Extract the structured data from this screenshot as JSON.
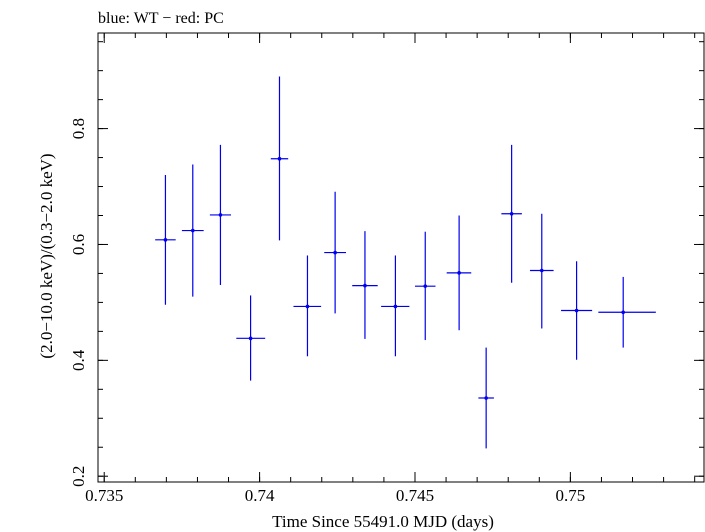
{
  "chart_data": {
    "type": "scatter",
    "title": "blue: WT − red: PC",
    "xlabel": "Time Since 55491.0 MJD (days)",
    "ylabel": "(2.0−10.0 keV)/(0.3−2.0 keV)",
    "xlim": [
      0.7348,
      0.7543
    ],
    "ylim": [
      0.19,
      0.965
    ],
    "x_ticks": [
      0.735,
      0.74,
      0.745,
      0.75
    ],
    "x_tick_labels": [
      "0.735",
      "0.74",
      "0.745",
      "0.75"
    ],
    "y_ticks": [
      0.2,
      0.4,
      0.6,
      0.8
    ],
    "y_tick_labels": [
      "0.2",
      "0.4",
      "0.6",
      "0.8"
    ],
    "x_minor_step": 0.001,
    "y_minor_step": 0.05,
    "grid": false,
    "legend": "none",
    "series": [
      {
        "color": "#0000ee",
        "points": [
          {
            "x": 0.73697,
            "xlo": 0.73664,
            "xhi": 0.7373,
            "y": 0.608,
            "ylo": 0.496,
            "yhi": 0.72
          },
          {
            "x": 0.73785,
            "xlo": 0.7375,
            "xhi": 0.7382,
            "y": 0.624,
            "ylo": 0.51,
            "yhi": 0.738
          },
          {
            "x": 0.73874,
            "xlo": 0.7384,
            "xhi": 0.73908,
            "y": 0.651,
            "ylo": 0.53,
            "yhi": 0.772
          },
          {
            "x": 0.73971,
            "xlo": 0.73925,
            "xhi": 0.74018,
            "y": 0.438,
            "ylo": 0.365,
            "yhi": 0.512
          },
          {
            "x": 0.74064,
            "xlo": 0.74036,
            "xhi": 0.74092,
            "y": 0.748,
            "ylo": 0.607,
            "yhi": 0.89
          },
          {
            "x": 0.74154,
            "xlo": 0.74109,
            "xhi": 0.74198,
            "y": 0.493,
            "ylo": 0.407,
            "yhi": 0.581
          },
          {
            "x": 0.74243,
            "xlo": 0.74208,
            "xhi": 0.74278,
            "y": 0.586,
            "ylo": 0.481,
            "yhi": 0.691
          },
          {
            "x": 0.74339,
            "xlo": 0.74298,
            "xhi": 0.7438,
            "y": 0.529,
            "ylo": 0.437,
            "yhi": 0.623
          },
          {
            "x": 0.74437,
            "xlo": 0.74391,
            "xhi": 0.74482,
            "y": 0.493,
            "ylo": 0.407,
            "yhi": 0.581
          },
          {
            "x": 0.74533,
            "xlo": 0.745,
            "xhi": 0.74566,
            "y": 0.528,
            "ylo": 0.435,
            "yhi": 0.622
          },
          {
            "x": 0.74642,
            "xlo": 0.74602,
            "xhi": 0.74681,
            "y": 0.551,
            "ylo": 0.452,
            "yhi": 0.65
          },
          {
            "x": 0.74729,
            "xlo": 0.74704,
            "xhi": 0.74754,
            "y": 0.335,
            "ylo": 0.248,
            "yhi": 0.422
          },
          {
            "x": 0.74811,
            "xlo": 0.74778,
            "xhi": 0.74844,
            "y": 0.653,
            "ylo": 0.534,
            "yhi": 0.772
          },
          {
            "x": 0.74908,
            "xlo": 0.7487,
            "xhi": 0.74946,
            "y": 0.555,
            "ylo": 0.455,
            "yhi": 0.653
          },
          {
            "x": 0.7502,
            "xlo": 0.7497,
            "xhi": 0.7507,
            "y": 0.486,
            "ylo": 0.401,
            "yhi": 0.571
          },
          {
            "x": 0.7517,
            "xlo": 0.7509,
            "xhi": 0.75275,
            "y": 0.483,
            "ylo": 0.422,
            "yhi": 0.544
          }
        ]
      }
    ]
  }
}
